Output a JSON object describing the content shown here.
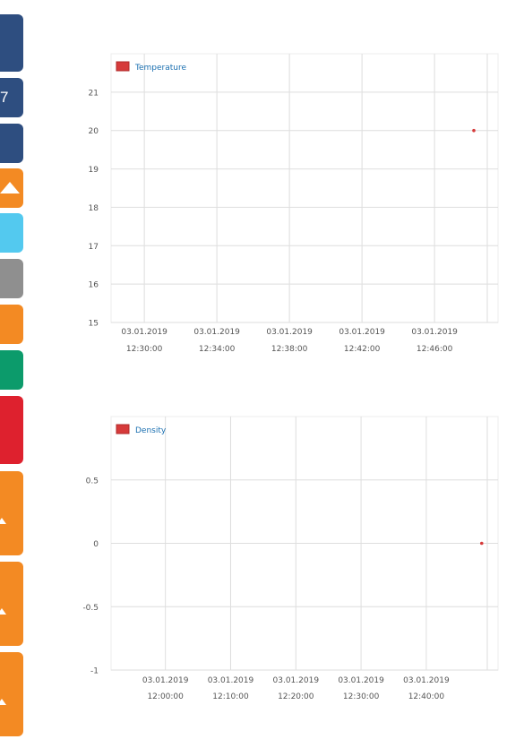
{
  "sidebar": {
    "buttons": [
      {
        "id": "btn-1",
        "color": "#2e4e80",
        "top": 16,
        "height": 64,
        "label": ""
      },
      {
        "id": "btn-2",
        "color": "#2e4e80",
        "top": 87,
        "height": 44,
        "label": "7"
      },
      {
        "id": "btn-3",
        "color": "#2e4e80",
        "top": 138,
        "height": 44,
        "label": ""
      },
      {
        "id": "btn-4",
        "color": "#f38a23",
        "top": 188,
        "height": 44,
        "label": "",
        "icon": "triangle-up-icon"
      },
      {
        "id": "btn-5",
        "color": "#53c9ef",
        "top": 238,
        "height": 44,
        "label": ""
      },
      {
        "id": "btn-6",
        "color": "#8f8f8f",
        "top": 289,
        "height": 44,
        "label": ""
      },
      {
        "id": "btn-7",
        "color": "#f38a23",
        "top": 340,
        "height": 44,
        "label": ""
      },
      {
        "id": "btn-8",
        "color": "#0c9b6b",
        "top": 391,
        "height": 44,
        "label": ""
      },
      {
        "id": "btn-9",
        "color": "#de212e",
        "top": 442,
        "height": 76,
        "label": ""
      },
      {
        "id": "btn-10",
        "color": "#f38a23",
        "top": 526,
        "height": 94,
        "label": "",
        "icon": "triangle-small-icon"
      },
      {
        "id": "btn-11",
        "color": "#f38a23",
        "top": 627,
        "height": 94,
        "label": "",
        "icon": "triangle-small-icon"
      },
      {
        "id": "btn-12",
        "color": "#f38a23",
        "top": 728,
        "height": 94,
        "label": "",
        "icon": "triangle-small-icon"
      }
    ]
  },
  "chart_data": [
    {
      "type": "scatter",
      "series": [
        {
          "name": "Temperature",
          "color": "#d63a3a",
          "points": [
            {
              "x": "03.01.2019 12:48:10",
              "y": 20
            }
          ]
        }
      ],
      "xticks": [
        {
          "date": "03.01.2019",
          "time": "12:30:00"
        },
        {
          "date": "03.01.2019",
          "time": "12:34:00"
        },
        {
          "date": "03.01.2019",
          "time": "12:38:00"
        },
        {
          "date": "03.01.2019",
          "time": "12:42:00"
        },
        {
          "date": "03.01.2019",
          "time": "12:46:00"
        }
      ],
      "xrange": [
        "03.01.2019 12:28:10",
        "03.01.2019 12:49:30"
      ],
      "yticks": [
        "15",
        "16",
        "17",
        "18",
        "19",
        "20",
        "21"
      ],
      "ylim": [
        15,
        22
      ],
      "grid": true,
      "legend": "top-left"
    },
    {
      "type": "scatter",
      "series": [
        {
          "name": "Density",
          "color": "#d63a3a",
          "points": [
            {
              "x": "03.01.2019 12:48:30",
              "y": 0
            }
          ]
        }
      ],
      "xticks": [
        {
          "date": "03.01.2019",
          "time": "12:00:00"
        },
        {
          "date": "03.01.2019",
          "time": "12:10:00"
        },
        {
          "date": "03.01.2019",
          "time": "12:20:00"
        },
        {
          "date": "03.01.2019",
          "time": "12:30:00"
        },
        {
          "date": "03.01.2019",
          "time": "12:40:00"
        }
      ],
      "xrange": [
        "03.01.2019 11:51:40",
        "03.01.2019 12:51:00"
      ],
      "yticks": [
        "-1",
        "-0.5",
        "0",
        "0.5"
      ],
      "ylim": [
        -1,
        1
      ],
      "grid": true,
      "legend": "top-left"
    }
  ]
}
